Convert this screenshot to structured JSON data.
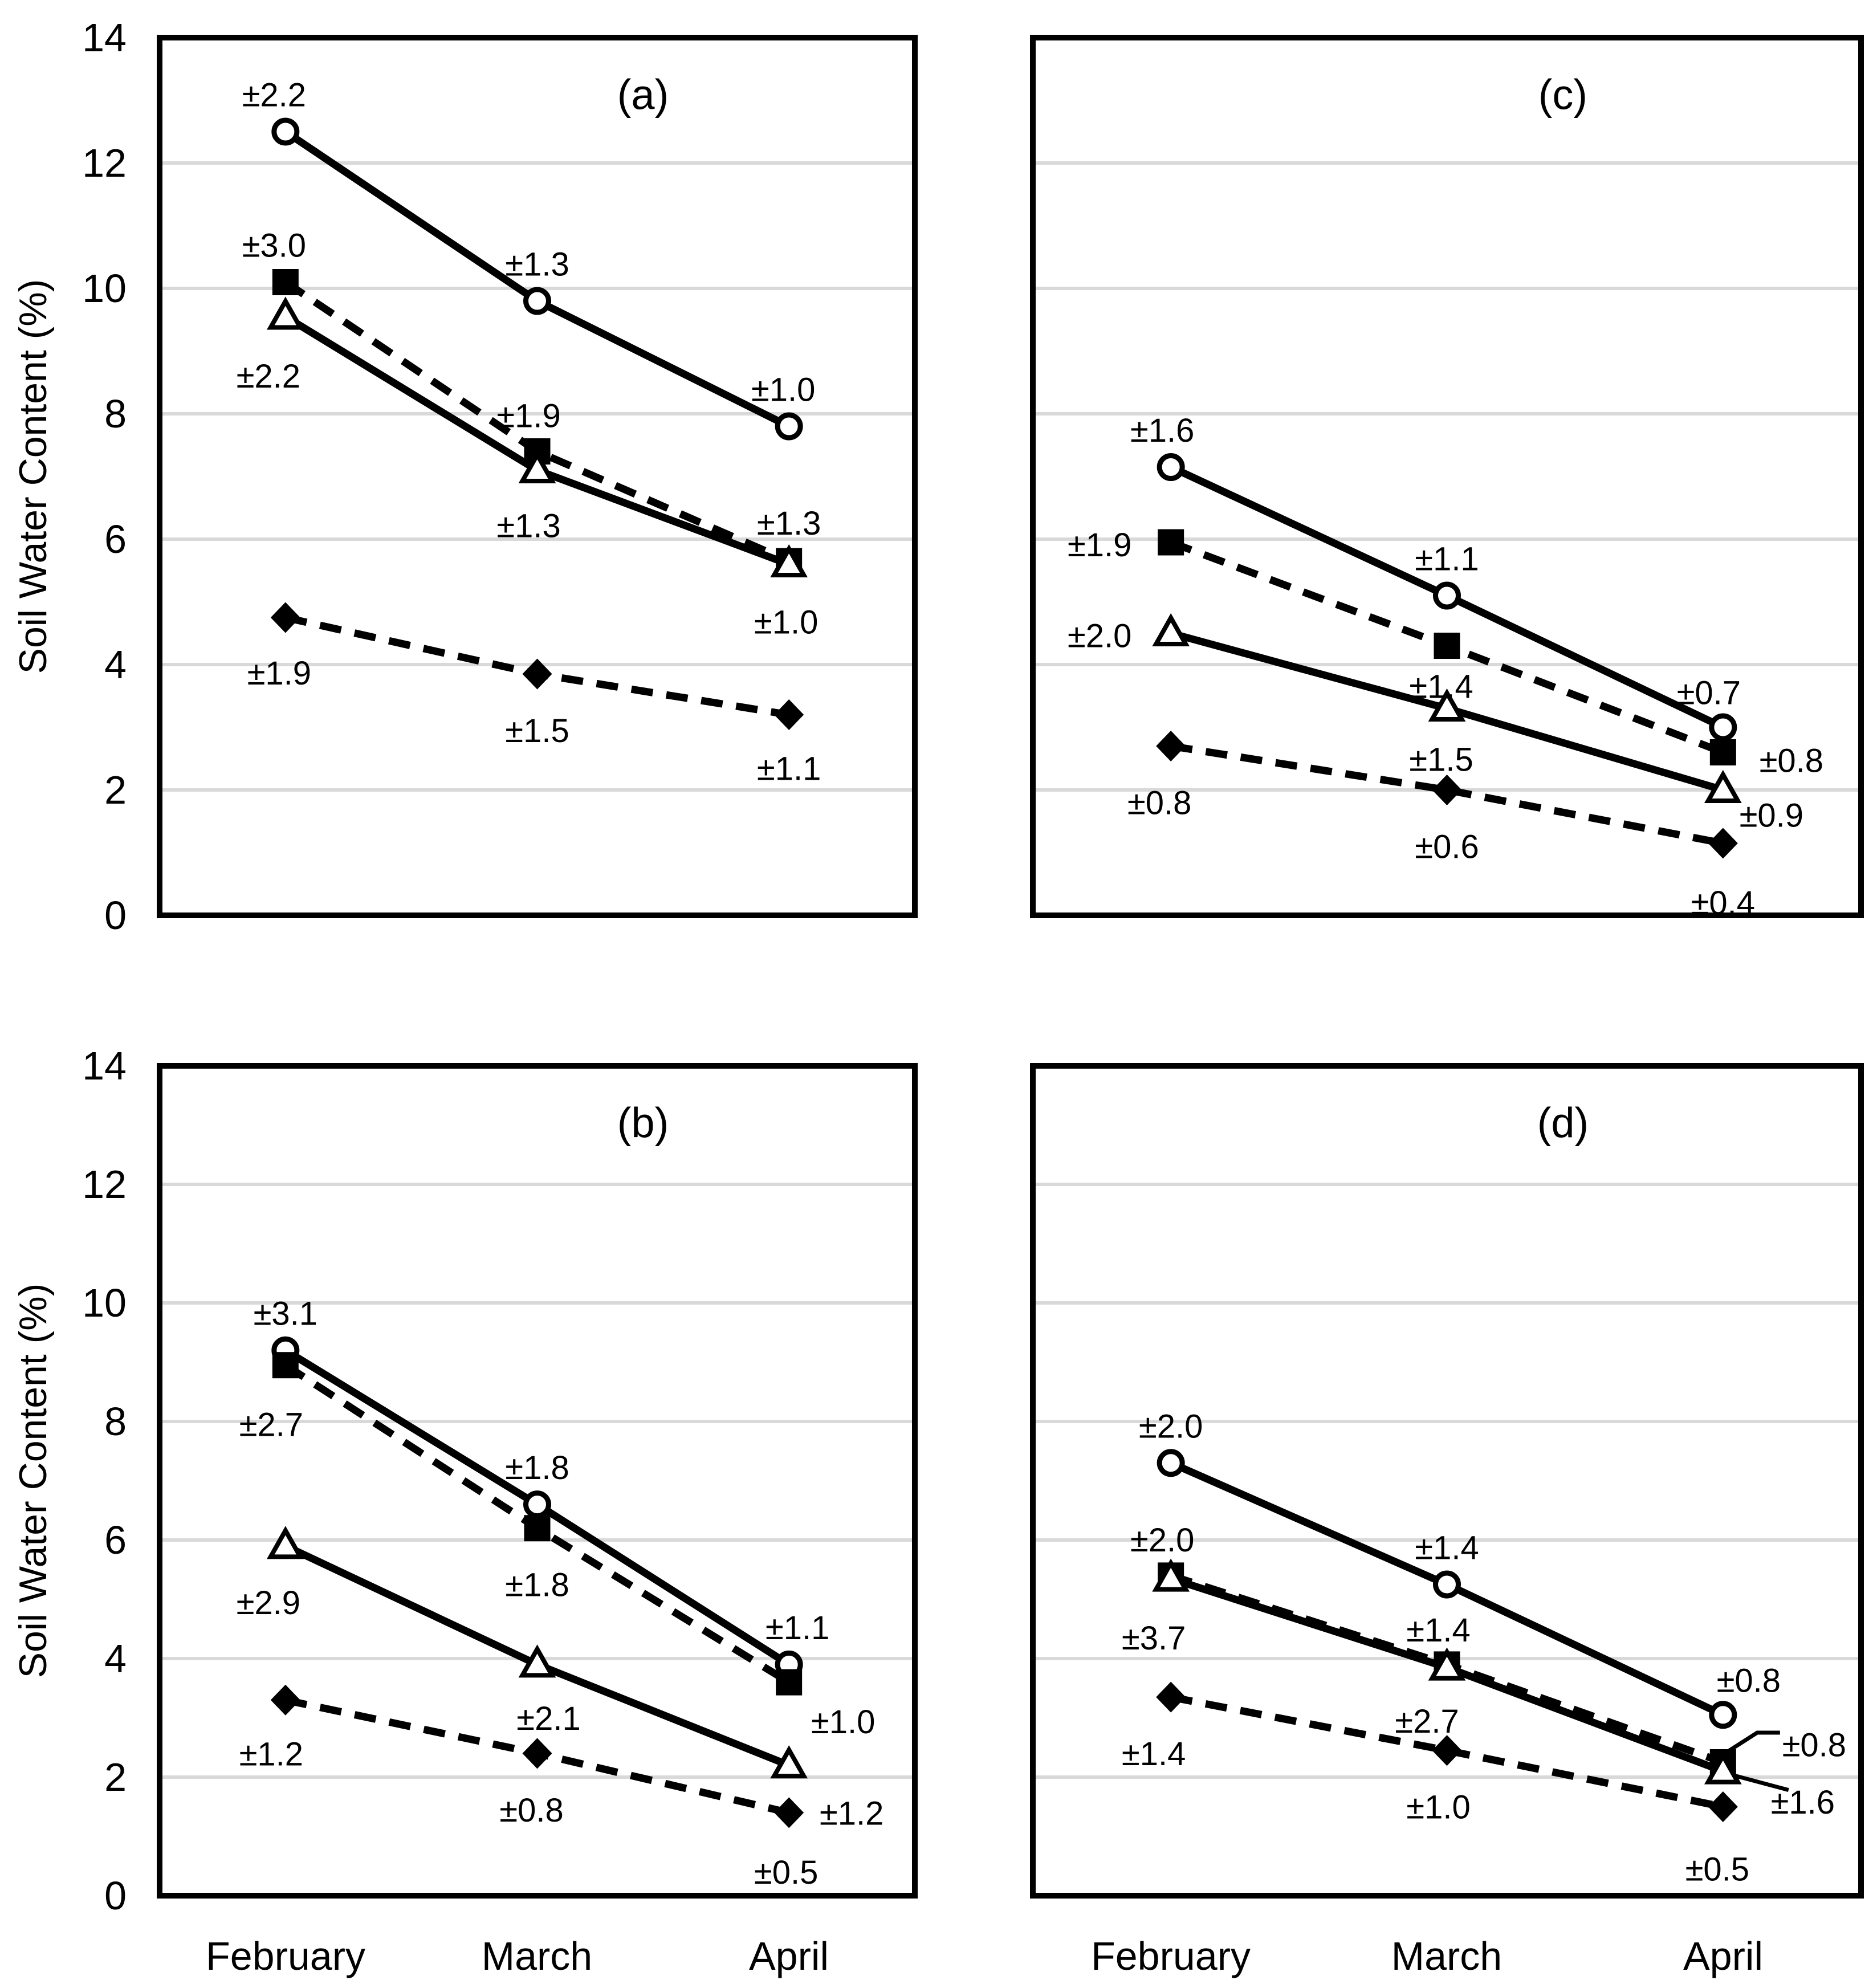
{
  "figure": {
    "ylabel": "Soil Water Content (%)",
    "background": "#ffffff",
    "ink_color": "#000000",
    "gridline_color": "#d9d9d9"
  },
  "chart_data": [
    {
      "type": "line",
      "panel": "a",
      "title": "(a)",
      "categories": [
        "February",
        "March",
        "April"
      ],
      "ylabel": "Soil Water Content (%)",
      "ylim": [
        0,
        14
      ],
      "ytick_step": 2,
      "grid": true,
      "legend_position": "none",
      "series": [
        {
          "name": "open-circle-solid",
          "marker": "circle",
          "marker_fill": "open",
          "line_style": "solid",
          "values": [
            12.5,
            9.8,
            7.8
          ],
          "errors": [
            "±2.2",
            "±1.3",
            "±1.0"
          ],
          "err_offsets": [
            [
              -20,
              -64
            ],
            [
              0,
              -64
            ],
            [
              -10,
              -64
            ]
          ]
        },
        {
          "name": "filled-square-dashed",
          "marker": "square",
          "marker_fill": "filled",
          "line_style": "dashed",
          "values": [
            10.1,
            7.4,
            5.65
          ],
          "errors": [
            "±3.0",
            "±1.9",
            "±1.3"
          ],
          "err_offsets": [
            [
              -20,
              -64
            ],
            [
              -15,
              -62
            ],
            [
              0,
              -66
            ]
          ]
        },
        {
          "name": "open-triangle-solid",
          "marker": "triangle",
          "marker_fill": "open",
          "line_style": "solid",
          "values": [
            9.55,
            7.1,
            5.6
          ],
          "errors": [
            "±2.2",
            "±1.3",
            "±1.0"
          ],
          "err_offsets": [
            [
              -30,
              105
            ],
            [
              -15,
              98
            ],
            [
              -5,
              102
            ]
          ]
        },
        {
          "name": "filled-diamond-dashed",
          "marker": "diamond",
          "marker_fill": "filled",
          "line_style": "dashed",
          "values": [
            4.75,
            3.85,
            3.2
          ],
          "errors": [
            "±1.9",
            "±1.5",
            "±1.1"
          ],
          "err_offsets": [
            [
              -11,
              98
            ],
            [
              0,
              100
            ],
            [
              0,
              95
            ]
          ]
        }
      ]
    },
    {
      "type": "line",
      "panel": "b",
      "title": "(b)",
      "categories": [
        "February",
        "March",
        "April"
      ],
      "ylabel": "Soil Water Content (%)",
      "ylim": [
        0,
        14
      ],
      "ytick_step": 2,
      "grid": true,
      "legend_position": "none",
      "series": [
        {
          "name": "open-circle-solid",
          "marker": "circle",
          "marker_fill": "open",
          "line_style": "solid",
          "values": [
            9.2,
            6.6,
            3.9
          ],
          "errors": [
            "±3.1",
            "±1.8",
            "±1.1"
          ],
          "err_offsets": [
            [
              0,
              -64
            ],
            [
              0,
              -64
            ],
            [
              15,
              -64
            ]
          ]
        },
        {
          "name": "filled-square-dashed",
          "marker": "square",
          "marker_fill": "filled",
          "line_style": "dashed",
          "values": [
            8.95,
            6.2,
            3.6
          ],
          "errors": [
            "±2.7",
            "±1.8",
            "±1.0"
          ],
          "err_offsets": [
            [
              -25,
              105
            ],
            [
              0,
              100
            ],
            [
              95,
              70
            ]
          ]
        },
        {
          "name": "open-triangle-solid",
          "marker": "triangle",
          "marker_fill": "open",
          "line_style": "solid",
          "values": [
            5.9,
            3.9,
            2.2
          ],
          "errors": [
            "±2.9",
            "±2.1",
            "±1.2"
          ],
          "err_offsets": [
            [
              -30,
              100
            ],
            [
              20,
              95
            ],
            [
              110,
              85
            ]
          ]
        },
        {
          "name": "filled-diamond-dashed",
          "marker": "diamond",
          "marker_fill": "filled",
          "line_style": "dashed",
          "values": [
            3.3,
            2.4,
            1.4
          ],
          "errors": [
            "±1.2",
            "±0.8",
            "±0.5"
          ],
          "err_offsets": [
            [
              -25,
              95
            ],
            [
              -10,
              100
            ],
            [
              -5,
              105
            ]
          ]
        }
      ]
    },
    {
      "type": "line",
      "panel": "c",
      "title": "(c)",
      "categories": [
        "February",
        "March",
        "April"
      ],
      "ylabel": "Soil Water Content (%)",
      "ylim": [
        0,
        14
      ],
      "ytick_step": 2,
      "grid": true,
      "legend_position": "none",
      "series": [
        {
          "name": "open-circle-solid",
          "marker": "circle",
          "marker_fill": "open",
          "line_style": "solid",
          "values": [
            7.15,
            5.1,
            3.0
          ],
          "errors": [
            "±1.6",
            "±1.1",
            "±0.7"
          ],
          "err_offsets": [
            [
              -15,
              -64
            ],
            [
              0,
              -64
            ],
            [
              -25,
              -60
            ]
          ]
        },
        {
          "name": "filled-square-dashed",
          "marker": "square",
          "marker_fill": "filled",
          "line_style": "dashed",
          "values": [
            5.95,
            4.3,
            2.6
          ],
          "errors": [
            "±1.9",
            "±1.4",
            "±0.8"
          ],
          "err_offsets": [
            [
              -125,
              5
            ],
            [
              -10,
              72
            ],
            [
              120,
              15
            ]
          ]
        },
        {
          "name": "open-triangle-solid",
          "marker": "triangle",
          "marker_fill": "open",
          "line_style": "solid",
          "values": [
            4.5,
            3.3,
            2.0
          ],
          "errors": [
            "±2.0",
            "±1.5",
            "±0.9"
          ],
          "err_offsets": [
            [
              -125,
              5
            ],
            [
              -10,
              90
            ],
            [
              85,
              45
            ]
          ]
        },
        {
          "name": "filled-diamond-dashed",
          "marker": "diamond",
          "marker_fill": "filled",
          "line_style": "dashed",
          "values": [
            2.7,
            2.0,
            1.15
          ],
          "errors": [
            "±0.8",
            "±0.6",
            "±0.4"
          ],
          "err_offsets": [
            [
              -20,
              100
            ],
            [
              0,
              100
            ],
            [
              0,
              105
            ]
          ]
        }
      ]
    },
    {
      "type": "line",
      "panel": "d",
      "title": "(d)",
      "categories": [
        "February",
        "March",
        "April"
      ],
      "ylabel": "Soil Water Content (%)",
      "ylim": [
        0,
        14
      ],
      "ytick_step": 2,
      "grid": true,
      "legend_position": "none",
      "series": [
        {
          "name": "open-circle-solid",
          "marker": "circle",
          "marker_fill": "open",
          "line_style": "solid",
          "values": [
            7.3,
            5.25,
            3.05
          ],
          "errors": [
            "±2.0",
            "±1.4",
            "±0.8"
          ],
          "err_offsets": [
            [
              0,
              -64
            ],
            [
              0,
              -64
            ],
            [
              45,
              -60
            ]
          ]
        },
        {
          "name": "filled-square-dashed",
          "marker": "square",
          "marker_fill": "filled",
          "line_style": "dashed",
          "values": [
            5.4,
            3.9,
            2.25
          ],
          "errors": [
            "±2.0",
            "±1.4",
            "±0.8"
          ],
          "err_offsets": [
            [
              -15,
              -62
            ],
            [
              -15,
              -60
            ],
            [
              160,
              -30
            ]
          ],
          "err_leaders": [
            null,
            null,
            [
              [
                10,
                -20
              ],
              [
                60,
                -52
              ],
              [
                100,
                -52
              ]
            ]
          ]
        },
        {
          "name": "open-triangle-solid",
          "marker": "triangle",
          "marker_fill": "open",
          "line_style": "solid",
          "values": [
            5.35,
            3.85,
            2.1
          ],
          "errors": [
            "±3.7",
            "±2.7",
            "±1.6"
          ],
          "err_offsets": [
            [
              -30,
              105
            ],
            [
              -35,
              95
            ],
            [
              140,
              55
            ]
          ],
          "err_leaders": [
            null,
            null,
            [
              [
                10,
                5
              ],
              [
                115,
                33
              ]
            ]
          ]
        },
        {
          "name": "filled-diamond-dashed",
          "marker": "diamond",
          "marker_fill": "filled",
          "line_style": "dashed",
          "values": [
            3.35,
            2.45,
            1.5
          ],
          "errors": [
            "±1.4",
            "±1.0",
            "±0.5"
          ],
          "err_offsets": [
            [
              -30,
              100
            ],
            [
              -15,
              100
            ],
            [
              -10,
              110
            ]
          ]
        }
      ]
    }
  ]
}
